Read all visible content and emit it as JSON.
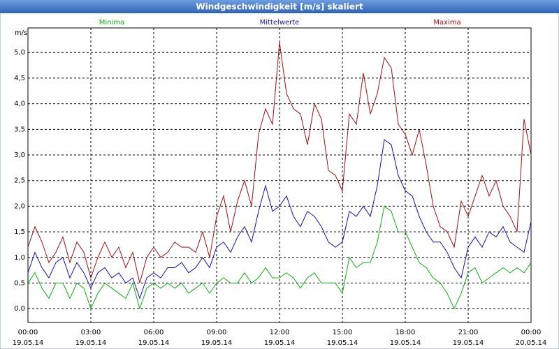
{
  "chart_data": {
    "type": "line",
    "title": "Windgeschwindigkeit [m/s] skaliert",
    "ylabel": "m/s",
    "x": [
      0,
      20,
      40,
      60,
      80,
      100,
      120,
      140,
      160,
      180,
      200,
      220,
      240,
      260,
      280,
      300,
      320,
      340,
      360,
      380,
      400,
      420,
      440,
      460,
      480,
      500,
      520,
      540,
      560,
      580,
      600,
      620,
      640,
      660,
      680,
      700,
      720,
      740,
      760,
      780,
      800,
      820,
      840,
      860,
      880,
      900,
      920,
      940,
      960,
      980,
      1000,
      1020,
      1040,
      1060,
      1080,
      1100,
      1120,
      1140,
      1160,
      1180,
      1200,
      1220,
      1240,
      1260,
      1280,
      1300,
      1320,
      1340,
      1360,
      1380,
      1400,
      1420,
      1440
    ],
    "series": [
      {
        "name": "Minima",
        "color": "#10b010",
        "values": [
          0.5,
          0.7,
          0.4,
          0.2,
          0.5,
          0.5,
          0.2,
          0.5,
          0.4,
          0.0,
          0.3,
          0.5,
          0.4,
          0.3,
          0.2,
          0.5,
          0.0,
          0.4,
          0.5,
          0.4,
          0.5,
          0.4,
          0.5,
          0.3,
          0.4,
          0.5,
          0.3,
          0.5,
          0.6,
          0.5,
          0.5,
          0.7,
          0.5,
          0.6,
          0.8,
          0.6,
          0.6,
          0.7,
          0.6,
          0.4,
          0.6,
          0.7,
          0.5,
          0.5,
          0.5,
          0.3,
          1.0,
          0.8,
          0.9,
          0.9,
          1.3,
          2.0,
          1.9,
          1.5,
          1.5,
          1.2,
          0.9,
          0.8,
          0.6,
          0.5,
          0.3,
          0.0,
          0.3,
          0.7,
          0.8,
          0.5,
          0.6,
          0.7,
          0.8,
          0.7,
          0.8,
          0.7,
          0.9
        ]
      },
      {
        "name": "Mittelwerte",
        "color": "#1010b0",
        "values": [
          0.7,
          1.1,
          0.8,
          0.6,
          0.9,
          1.0,
          0.6,
          0.9,
          0.7,
          0.4,
          0.7,
          0.8,
          0.6,
          0.7,
          0.5,
          0.6,
          0.2,
          0.6,
          0.7,
          0.6,
          0.8,
          0.8,
          0.9,
          0.7,
          0.8,
          1.0,
          0.8,
          1.2,
          1.3,
          1.1,
          1.4,
          1.6,
          1.3,
          1.9,
          2.4,
          1.9,
          2.0,
          2.2,
          1.8,
          1.6,
          1.9,
          1.8,
          1.6,
          1.3,
          1.2,
          1.3,
          1.9,
          1.8,
          2.0,
          1.8,
          2.4,
          3.3,
          3.2,
          2.6,
          2.3,
          2.2,
          1.8,
          1.5,
          1.3,
          1.3,
          1.1,
          0.8,
          0.6,
          1.2,
          1.4,
          1.2,
          1.5,
          1.4,
          1.6,
          1.3,
          1.2,
          1.1,
          1.7
        ]
      },
      {
        "name": "Maxima",
        "color": "#a01010",
        "values": [
          1.2,
          1.6,
          1.3,
          0.9,
          1.1,
          1.4,
          0.9,
          1.3,
          1.1,
          0.6,
          1.0,
          1.3,
          1.0,
          1.2,
          0.8,
          1.1,
          0.5,
          1.0,
          1.2,
          1.0,
          1.1,
          1.3,
          1.2,
          1.2,
          1.1,
          1.5,
          1.0,
          1.8,
          2.2,
          1.5,
          2.1,
          2.5,
          2.0,
          3.4,
          3.9,
          3.6,
          5.2,
          4.2,
          3.9,
          3.8,
          3.2,
          4.0,
          3.7,
          2.7,
          2.6,
          2.3,
          3.8,
          3.6,
          4.6,
          3.8,
          4.2,
          4.9,
          4.7,
          3.6,
          3.4,
          3.0,
          3.5,
          2.8,
          2.0,
          1.6,
          1.5,
          1.2,
          2.1,
          1.8,
          2.2,
          2.6,
          2.2,
          2.5,
          2.0,
          1.8,
          1.5,
          3.7,
          3.0
        ]
      }
    ],
    "xlim": [
      0,
      1440
    ],
    "xticks": [
      {
        "value": 0,
        "label": "00:00",
        "date": "19.05.14"
      },
      {
        "value": 180,
        "label": "03:00",
        "date": "19.05.14"
      },
      {
        "value": 360,
        "label": "06:00",
        "date": "19.05.14"
      },
      {
        "value": 540,
        "label": "09:00",
        "date": "19.05.14"
      },
      {
        "value": 720,
        "label": "12:00",
        "date": "19.05.14"
      },
      {
        "value": 900,
        "label": "15:00",
        "date": "19.05.14"
      },
      {
        "value": 1080,
        "label": "18:00",
        "date": "19.05.14"
      },
      {
        "value": 1260,
        "label": "21:00",
        "date": "19.05.14"
      },
      {
        "value": 1440,
        "label": "00:00",
        "date": "20.05.14"
      }
    ],
    "ylim": [
      -0.27,
      5.48
    ],
    "yticks": [
      {
        "value": 0,
        "label": "0,0"
      },
      {
        "value": 0.5,
        "label": "0,5"
      },
      {
        "value": 1,
        "label": "1,0"
      },
      {
        "value": 1.5,
        "label": "1,5"
      },
      {
        "value": 2,
        "label": "2,0"
      },
      {
        "value": 2.5,
        "label": "2,5"
      },
      {
        "value": 3,
        "label": "3,0"
      },
      {
        "value": 3.5,
        "label": "3,5"
      },
      {
        "value": 4,
        "label": "4,0"
      },
      {
        "value": 4.5,
        "label": "4,5"
      },
      {
        "value": 5,
        "label": "5,0"
      }
    ],
    "grid": true
  }
}
